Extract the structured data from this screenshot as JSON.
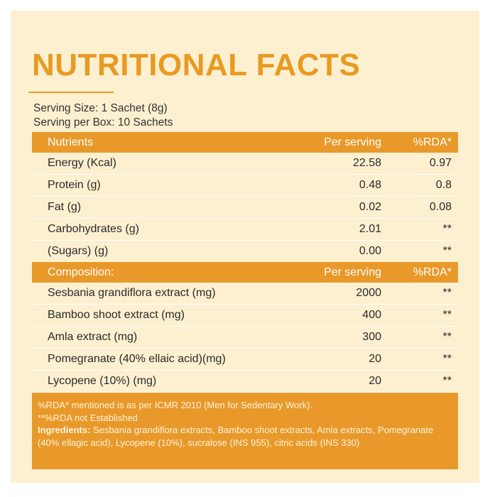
{
  "title": "NUTRITIONAL FACTS",
  "serving_size": "Serving Size: 1 Sachet (8g)",
  "serving_per_box": "Serving per Box: 10 Sachets",
  "nutrients_table": {
    "header": [
      "Nutrients",
      "Per serving",
      "%RDA*"
    ],
    "rows": [
      [
        "Energy (Kcal)",
        "22.58",
        "0.97"
      ],
      [
        "Protein (g)",
        "0.48",
        "0.8"
      ],
      [
        "Fat (g)",
        "0.02",
        "0.08"
      ],
      [
        "Carbohydrates (g)",
        "2.01",
        "**"
      ],
      [
        "(Sugars) (g)",
        "0.00",
        "**"
      ]
    ]
  },
  "composition_table": {
    "header": [
      "Composition:",
      "Per serving",
      "%RDA*"
    ],
    "rows": [
      [
        "Sesbania grandiflora extract (mg)",
        "2000",
        "**"
      ],
      [
        "Bamboo shoot extract (mg)",
        "400",
        "**"
      ],
      [
        "Amla extract (mg)",
        "300",
        "**"
      ],
      [
        "Pomegranate (40% ellaic acid)(mg)",
        "20",
        "**"
      ],
      [
        "Lycopene (10%) (mg)",
        "20",
        "**"
      ]
    ]
  },
  "footnotes": {
    "rda_note": "%RDA* mentioned is as per ICMR 2010 (Men for Sedentary Work).",
    "not_established": "**%RDA not Established",
    "ingredients_label": "Ingredients:",
    "ingredients_text": "Sesbania grandiflora extracts, Bamboo shoot extracts, Amla extracts, Pomegranate (40% ellagic acid), Lycopene (10%), sucralose (INS 955), citric acids (INS 330)"
  }
}
